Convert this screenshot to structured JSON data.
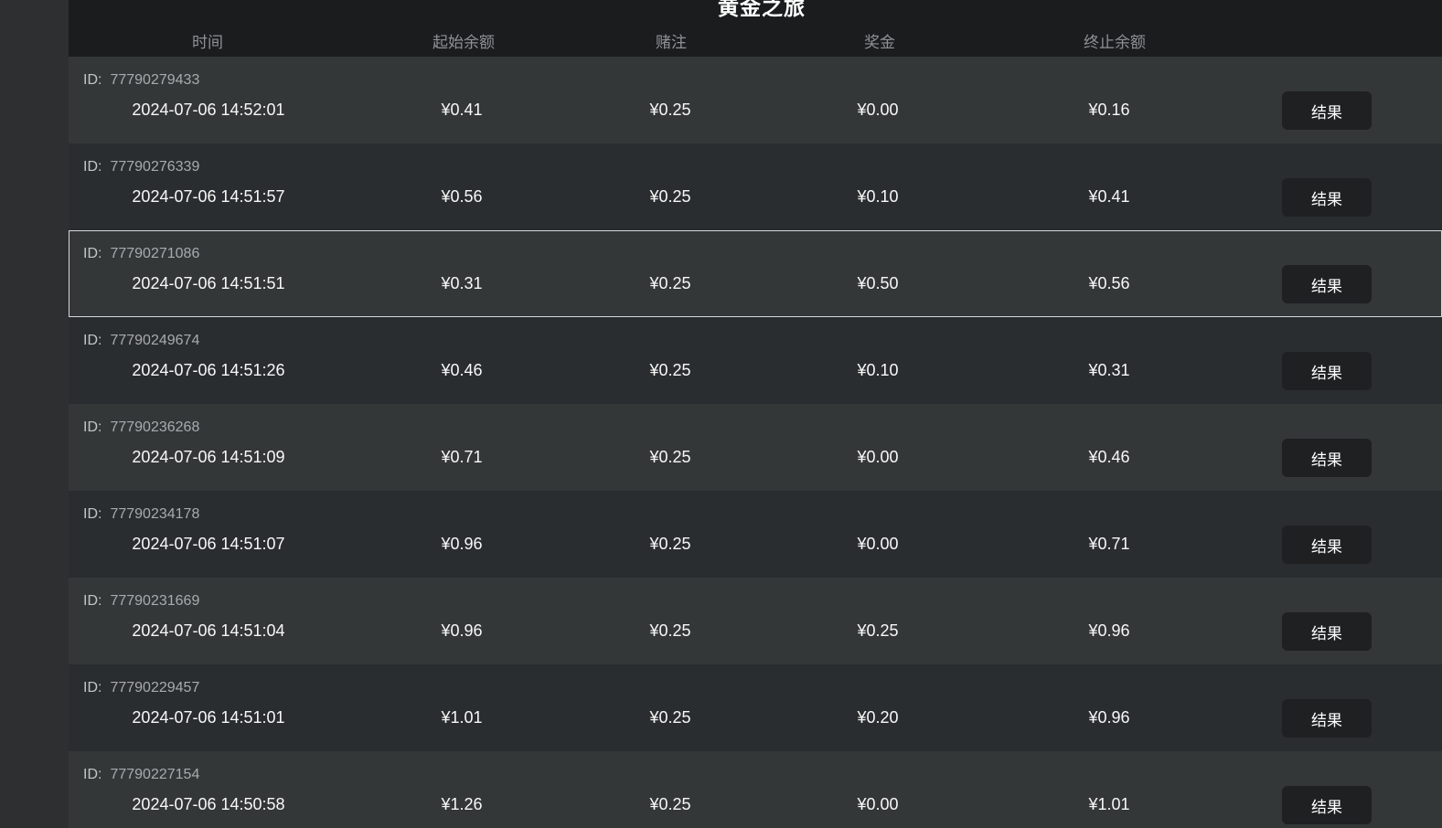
{
  "page": {
    "title": "黄金之旅"
  },
  "table": {
    "id_prefix": "ID:",
    "result_button_label": "结果",
    "headers": {
      "time": "时间",
      "start_balance": "起始余额",
      "bet": "赌注",
      "prize": "奖金",
      "end_balance": "终止余额"
    },
    "rows": [
      {
        "id": "77790279433",
        "time": "2024-07-06 14:52:01",
        "start_balance": "¥0.41",
        "bet": "¥0.25",
        "prize": "¥0.00",
        "end_balance": "¥0.16",
        "selected": false
      },
      {
        "id": "77790276339",
        "time": "2024-07-06 14:51:57",
        "start_balance": "¥0.56",
        "bet": "¥0.25",
        "prize": "¥0.10",
        "end_balance": "¥0.41",
        "selected": false
      },
      {
        "id": "77790271086",
        "time": "2024-07-06 14:51:51",
        "start_balance": "¥0.31",
        "bet": "¥0.25",
        "prize": "¥0.50",
        "end_balance": "¥0.56",
        "selected": true
      },
      {
        "id": "77790249674",
        "time": "2024-07-06 14:51:26",
        "start_balance": "¥0.46",
        "bet": "¥0.25",
        "prize": "¥0.10",
        "end_balance": "¥0.31",
        "selected": false
      },
      {
        "id": "77790236268",
        "time": "2024-07-06 14:51:09",
        "start_balance": "¥0.71",
        "bet": "¥0.25",
        "prize": "¥0.00",
        "end_balance": "¥0.46",
        "selected": false
      },
      {
        "id": "77790234178",
        "time": "2024-07-06 14:51:07",
        "start_balance": "¥0.96",
        "bet": "¥0.25",
        "prize": "¥0.00",
        "end_balance": "¥0.71",
        "selected": false
      },
      {
        "id": "77790231669",
        "time": "2024-07-06 14:51:04",
        "start_balance": "¥0.96",
        "bet": "¥0.25",
        "prize": "¥0.25",
        "end_balance": "¥0.96",
        "selected": false
      },
      {
        "id": "77790229457",
        "time": "2024-07-06 14:51:01",
        "start_balance": "¥1.01",
        "bet": "¥0.25",
        "prize": "¥0.20",
        "end_balance": "¥0.96",
        "selected": false
      },
      {
        "id": "77790227154",
        "time": "2024-07-06 14:50:58",
        "start_balance": "¥1.26",
        "bet": "¥0.25",
        "prize": "¥0.00",
        "end_balance": "¥1.01",
        "selected": false
      }
    ]
  },
  "colors": {
    "page_background": "#2d2f31",
    "header_bar": "#1a1c1e",
    "row_odd": "#343738",
    "row_even": "#2a2d2f",
    "selected_border": "#d5d7d8",
    "header_text": "#8f9294",
    "value_text": "#f7f8f8",
    "button_background": "#1e2022"
  }
}
